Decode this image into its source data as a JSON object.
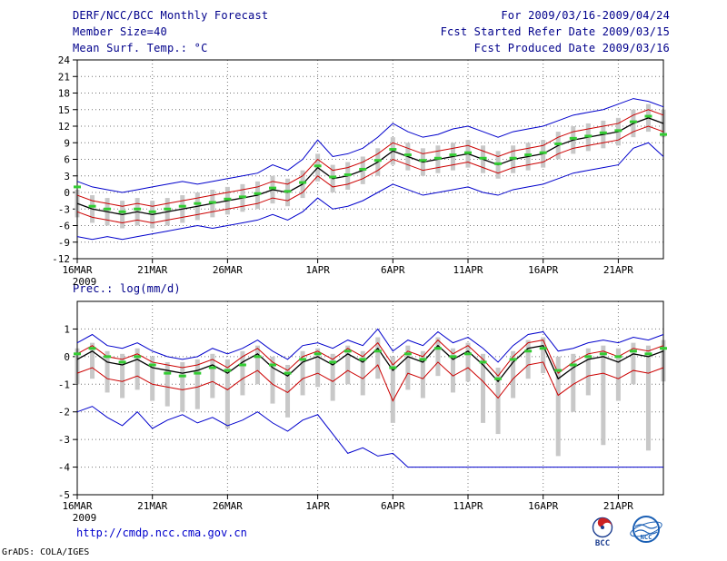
{
  "header": {
    "title": "DERF/NCC/BCC Monthly Forecast",
    "member_size": "Member Size=40",
    "for_range": "For 2009/03/16-2009/04/24",
    "fcst_started": "Fcst Started Refer Date 2009/03/15",
    "fcst_produced": "Fcst Produced Date 2009/03/16"
  },
  "footer": {
    "url": "http://cmdp.ncc.cma.gov.cn",
    "credit": "GrADS: COLA/IGES",
    "bcc_label": "BCC",
    "ncc_label": "NCC"
  },
  "colors": {
    "header_text": "#00008b",
    "envelope_blue": "#0000cc",
    "quartile_red": "#cc0000",
    "mean_black": "#000000",
    "median_green": "#33cc33",
    "spread_gray": "#c8c8c8",
    "url_blue": "#0000cc"
  },
  "chart_data": [
    {
      "type": "line",
      "title": "Mean Surf. Temp.: °C",
      "xlabel": "",
      "ylabel": "°C",
      "ylim": [
        -12,
        24
      ],
      "yticks": [
        24,
        21,
        18,
        15,
        12,
        9,
        6,
        3,
        0,
        -3,
        -6,
        -9,
        -12
      ],
      "xtick_positions": [
        0,
        5,
        10,
        16,
        21,
        26,
        31,
        36
      ],
      "xtick_labels": [
        "16MAR",
        "21MAR",
        "26MAR",
        "1APR",
        "6APR",
        "11APR",
        "16APR",
        "21APR"
      ],
      "x_year": "2009",
      "grid": "dotted",
      "legend": "none",
      "series": [
        {
          "name": "ensemble-max",
          "color": "#0000cc",
          "style": "line",
          "width": 1,
          "values": [
            2.0,
            1.0,
            0.5,
            0.0,
            0.5,
            1.0,
            1.5,
            2.0,
            1.5,
            2.0,
            2.5,
            3.0,
            3.5,
            5.0,
            4.0,
            6.0,
            9.5,
            6.5,
            7.0,
            8.0,
            10.0,
            12.5,
            11.0,
            10.0,
            10.5,
            11.5,
            12.0,
            11.0,
            10.0,
            11.0,
            11.5,
            12.0,
            13.0,
            14.0,
            14.5,
            15.0,
            16.0,
            17.0,
            16.5,
            15.5
          ]
        },
        {
          "name": "upper-quartile",
          "color": "#cc0000",
          "style": "line",
          "width": 1,
          "values": [
            -0.5,
            -1.5,
            -2.0,
            -2.5,
            -2.0,
            -2.5,
            -2.0,
            -1.5,
            -1.0,
            -0.5,
            0.0,
            0.5,
            1.0,
            2.0,
            1.5,
            3.0,
            6.0,
            4.0,
            4.5,
            5.5,
            7.0,
            9.0,
            8.0,
            7.0,
            7.5,
            8.0,
            8.5,
            7.5,
            6.5,
            7.5,
            8.0,
            8.5,
            10.0,
            11.0,
            11.5,
            12.0,
            12.5,
            14.0,
            15.0,
            14.0
          ]
        },
        {
          "name": "lower-quartile",
          "color": "#cc0000",
          "style": "line",
          "width": 1,
          "values": [
            -3.5,
            -4.5,
            -5.0,
            -5.5,
            -5.0,
            -5.5,
            -5.0,
            -4.5,
            -4.0,
            -3.5,
            -3.0,
            -2.5,
            -2.0,
            -1.0,
            -1.5,
            0.0,
            3.0,
            1.0,
            1.5,
            2.5,
            4.0,
            6.0,
            5.0,
            4.0,
            4.5,
            5.0,
            5.5,
            4.5,
            3.5,
            4.5,
            5.0,
            5.5,
            7.0,
            8.0,
            8.5,
            9.0,
            9.5,
            11.0,
            12.0,
            11.0
          ]
        },
        {
          "name": "ensemble-min",
          "color": "#0000cc",
          "style": "line",
          "width": 1,
          "values": [
            -8.0,
            -8.5,
            -8.0,
            -8.5,
            -8.0,
            -7.5,
            -7.0,
            -6.5,
            -6.0,
            -6.5,
            -6.0,
            -5.5,
            -5.0,
            -4.0,
            -5.0,
            -3.5,
            -1.0,
            -3.0,
            -2.5,
            -1.5,
            0.0,
            1.5,
            0.5,
            -0.5,
            0.0,
            0.5,
            1.0,
            0.0,
            -0.5,
            0.5,
            1.0,
            1.5,
            2.5,
            3.5,
            4.0,
            4.5,
            5.0,
            8.0,
            9.0,
            6.5
          ]
        },
        {
          "name": "ensemble-mean",
          "color": "#000000",
          "style": "line",
          "width": 1.3,
          "values": [
            -2.0,
            -3.0,
            -3.5,
            -4.0,
            -3.5,
            -4.0,
            -3.5,
            -3.0,
            -2.5,
            -2.0,
            -1.5,
            -1.0,
            -0.5,
            0.5,
            0.0,
            1.5,
            4.5,
            2.5,
            3.0,
            4.0,
            5.5,
            7.5,
            6.5,
            5.5,
            6.0,
            6.5,
            7.0,
            6.0,
            5.0,
            6.0,
            6.5,
            7.0,
            8.5,
            9.5,
            10.0,
            10.5,
            11.0,
            12.5,
            13.5,
            12.5
          ]
        },
        {
          "name": "ensemble-median",
          "color": "#33cc33",
          "style": "markers",
          "width": 3,
          "values": [
            1.0,
            -2.5,
            -3.0,
            -3.5,
            -3.0,
            -3.5,
            -3.0,
            -2.5,
            -2.0,
            -1.8,
            -1.2,
            -0.8,
            -0.2,
            0.8,
            0.2,
            1.8,
            4.8,
            2.8,
            3.2,
            4.2,
            5.8,
            7.8,
            6.8,
            5.8,
            6.2,
            6.8,
            7.2,
            6.2,
            5.2,
            6.2,
            6.8,
            7.2,
            8.8,
            9.8,
            10.2,
            10.8,
            11.2,
            12.8,
            13.8,
            10.5
          ]
        }
      ],
      "bars": {
        "name": "ensemble-spread",
        "color": "#c8c8c8",
        "low": [
          -4.5,
          -5.5,
          -6.0,
          -6.5,
          -6.0,
          -6.5,
          -6.0,
          -5.5,
          -5.0,
          -4.5,
          -4.0,
          -3.5,
          -3.0,
          -2.0,
          -2.5,
          -1.0,
          2.0,
          0.0,
          0.5,
          1.5,
          3.0,
          5.0,
          4.0,
          3.0,
          3.5,
          4.0,
          4.5,
          3.5,
          2.5,
          3.5,
          4.0,
          4.5,
          6.0,
          7.0,
          7.5,
          8.0,
          8.5,
          10.0,
          11.0,
          10.0
        ],
        "high": [
          0.5,
          -0.5,
          -1.0,
          -1.5,
          -1.0,
          -1.5,
          -1.0,
          -0.5,
          0.0,
          0.5,
          1.0,
          1.5,
          2.0,
          3.0,
          2.5,
          4.0,
          7.0,
          5.0,
          5.5,
          6.5,
          8.0,
          10.0,
          9.0,
          8.0,
          8.5,
          9.0,
          9.5,
          8.5,
          7.5,
          8.5,
          9.0,
          9.5,
          11.0,
          12.0,
          12.5,
          13.0,
          13.5,
          15.0,
          16.0,
          15.0
        ]
      }
    },
    {
      "type": "line",
      "title": "Prec.: log(mm/d)",
      "xlabel": "",
      "ylabel": "log(mm/d)",
      "ylim": [
        -5,
        2
      ],
      "yticks": [
        1,
        0,
        -1,
        -2,
        -3,
        -4,
        -5
      ],
      "xtick_positions": [
        0,
        5,
        10,
        16,
        21,
        26,
        31,
        36
      ],
      "xtick_labels": [
        "16MAR",
        "21MAR",
        "26MAR",
        "1APR",
        "6APR",
        "11APR",
        "16APR",
        "21APR"
      ],
      "x_year": "2009",
      "grid": "dotted",
      "legend": "none",
      "series": [
        {
          "name": "ensemble-max",
          "color": "#0000cc",
          "style": "line",
          "width": 1,
          "values": [
            0.5,
            0.8,
            0.4,
            0.3,
            0.5,
            0.2,
            0.0,
            -0.1,
            0.0,
            0.3,
            0.1,
            0.3,
            0.6,
            0.2,
            -0.1,
            0.4,
            0.5,
            0.3,
            0.6,
            0.4,
            1.0,
            0.2,
            0.6,
            0.4,
            0.9,
            0.5,
            0.7,
            0.3,
            -0.2,
            0.4,
            0.8,
            0.9,
            0.2,
            0.3,
            0.5,
            0.6,
            0.5,
            0.7,
            0.6,
            0.8
          ]
        },
        {
          "name": "upper-quartile",
          "color": "#cc0000",
          "style": "line",
          "width": 1,
          "values": [
            0.1,
            0.4,
            0.0,
            -0.1,
            0.1,
            -0.2,
            -0.3,
            -0.4,
            -0.3,
            -0.1,
            -0.4,
            0.0,
            0.3,
            -0.2,
            -0.5,
            0.0,
            0.2,
            -0.1,
            0.3,
            0.0,
            0.5,
            -0.3,
            0.2,
            0.0,
            0.6,
            0.1,
            0.4,
            -0.1,
            -0.7,
            0.0,
            0.5,
            0.6,
            -0.6,
            -0.2,
            0.1,
            0.2,
            0.0,
            0.3,
            0.2,
            0.4
          ]
        },
        {
          "name": "lower-quartile",
          "color": "#cc0000",
          "style": "line",
          "width": 1,
          "values": [
            -0.6,
            -0.4,
            -0.8,
            -0.9,
            -0.7,
            -1.0,
            -1.1,
            -1.2,
            -1.1,
            -0.9,
            -1.2,
            -0.8,
            -0.5,
            -1.0,
            -1.3,
            -0.8,
            -0.6,
            -0.9,
            -0.5,
            -0.8,
            -0.3,
            -1.6,
            -0.6,
            -0.8,
            -0.2,
            -0.7,
            -0.4,
            -0.9,
            -1.5,
            -0.8,
            -0.3,
            -0.2,
            -1.4,
            -1.0,
            -0.7,
            -0.6,
            -0.8,
            -0.5,
            -0.6,
            -0.4
          ]
        },
        {
          "name": "ensemble-min",
          "color": "#0000cc",
          "style": "line",
          "width": 1,
          "values": [
            -2.0,
            -1.8,
            -2.2,
            -2.5,
            -2.0,
            -2.6,
            -2.3,
            -2.1,
            -2.4,
            -2.2,
            -2.5,
            -2.3,
            -2.0,
            -2.4,
            -2.7,
            -2.3,
            -2.1,
            -2.8,
            -3.5,
            -3.3,
            -3.6,
            -3.5,
            -4.0,
            -4.0,
            -4.0,
            -4.0,
            -4.0,
            -4.0,
            -4.0,
            -4.0,
            -4.0,
            -4.0,
            -4.0,
            -4.0,
            -4.0,
            -4.0,
            -4.0,
            -4.0,
            -4.0,
            -4.0
          ]
        },
        {
          "name": "ensemble-mean",
          "color": "#000000",
          "style": "line",
          "width": 1.3,
          "values": [
            -0.1,
            0.2,
            -0.2,
            -0.3,
            -0.1,
            -0.4,
            -0.5,
            -0.6,
            -0.5,
            -0.3,
            -0.6,
            -0.2,
            0.1,
            -0.4,
            -0.7,
            -0.2,
            0.0,
            -0.3,
            0.1,
            -0.2,
            0.3,
            -0.5,
            0.0,
            -0.2,
            0.4,
            -0.1,
            0.2,
            -0.3,
            -0.9,
            -0.2,
            0.3,
            0.4,
            -0.8,
            -0.4,
            -0.1,
            0.0,
            -0.2,
            0.1,
            0.0,
            0.2
          ]
        },
        {
          "name": "ensemble-median",
          "color": "#33cc33",
          "style": "markers",
          "width": 3,
          "values": [
            0.1,
            0.3,
            0.0,
            -0.2,
            0.0,
            -0.3,
            -0.6,
            -0.7,
            -0.6,
            -0.4,
            -0.5,
            -0.3,
            0.0,
            -0.3,
            -0.6,
            -0.1,
            0.1,
            -0.2,
            0.2,
            -0.1,
            0.2,
            -0.4,
            0.1,
            -0.1,
            0.3,
            0.0,
            0.1,
            -0.2,
            -0.8,
            -0.1,
            0.2,
            0.3,
            -0.5,
            -0.3,
            0.0,
            0.1,
            0.0,
            0.2,
            0.1,
            0.3
          ]
        }
      ],
      "bars": {
        "name": "ensemble-spread",
        "color": "#c8c8c8",
        "low": [
          -1.0,
          -0.8,
          -1.3,
          -1.5,
          -1.2,
          -1.6,
          -1.8,
          -2.0,
          -1.9,
          -1.5,
          -2.6,
          -1.4,
          -1.0,
          -1.7,
          -2.2,
          -1.4,
          -1.1,
          -1.6,
          -1.0,
          -1.4,
          -0.8,
          -2.4,
          -1.2,
          -1.5,
          -0.7,
          -1.3,
          -0.9,
          -2.4,
          -2.8,
          -1.5,
          -0.8,
          -0.6,
          -3.6,
          -2.0,
          -1.4,
          -3.2,
          -1.6,
          -1.0,
          -3.4,
          -0.9
        ],
        "high": [
          0.3,
          0.5,
          0.2,
          0.1,
          0.3,
          0.0,
          -0.2,
          -0.2,
          -0.1,
          0.1,
          -0.1,
          0.2,
          0.4,
          0.0,
          -0.3,
          0.2,
          0.3,
          0.1,
          0.4,
          0.2,
          0.7,
          0.0,
          0.4,
          0.2,
          0.7,
          0.3,
          0.5,
          0.1,
          -0.4,
          0.2,
          0.6,
          0.7,
          0.0,
          0.1,
          0.3,
          0.4,
          0.3,
          0.5,
          0.4,
          0.6
        ]
      }
    }
  ]
}
